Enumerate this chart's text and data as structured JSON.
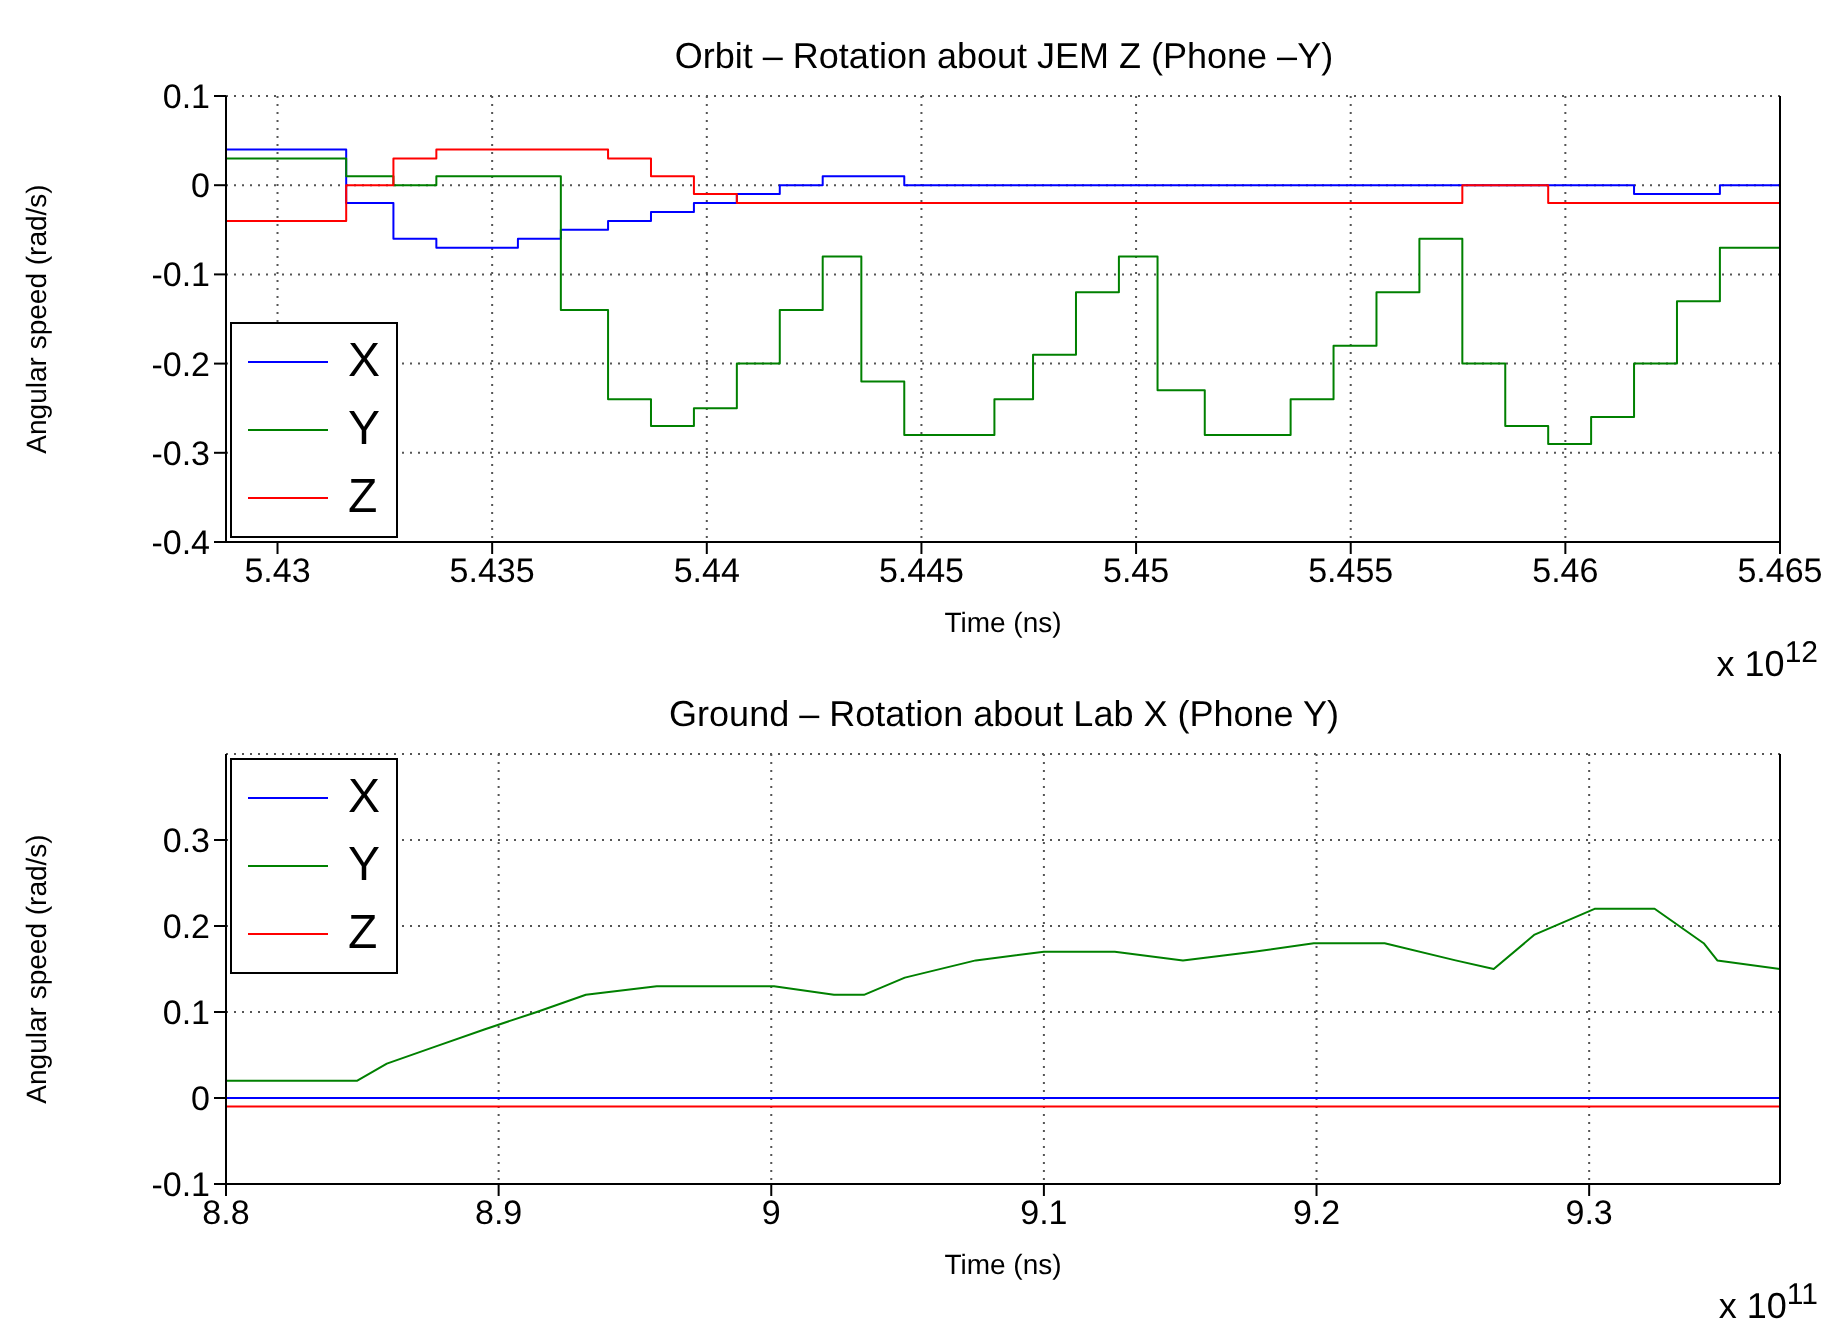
{
  "chart_data": [
    {
      "type": "line",
      "title": "Orbit – Rotation about JEM Z (Phone –Y)",
      "xlabel": "Time (ns)",
      "ylabel": "Angular speed (rad/s)",
      "annotations": [
        "x 10$^{12}$"
      ],
      "xlim": [
        5.4288,
        5.465
      ],
      "xticks": [
        5.43,
        5.435,
        5.44,
        5.445,
        5.45,
        5.455,
        5.46,
        5.465
      ],
      "ylim": [
        -0.4,
        0.1
      ],
      "yticks": [
        -0.4,
        -0.3,
        -0.2,
        -0.1,
        0,
        0.1
      ],
      "grid": true,
      "legend": "bottom left",
      "line_style": "solid",
      "series": [
        {
          "name": "X",
          "color": "#0000ff",
          "x": [
            5.4288,
            5.4316,
            5.4316,
            5.4327,
            5.4327,
            5.4337,
            5.4337,
            5.4356,
            5.4356,
            5.4366,
            5.4366,
            5.4377,
            5.4377,
            5.4387,
            5.4387,
            5.4397,
            5.4397,
            5.4407,
            5.4407,
            5.4417,
            5.4417,
            5.4427,
            5.4427,
            5.4436,
            5.4436,
            5.4446,
            5.4446,
            5.4576,
            5.4576,
            5.4596,
            5.4596,
            5.4616,
            5.4616,
            5.4636,
            5.4636,
            5.465
          ],
          "values": [
            0.04,
            0.04,
            -0.02,
            -0.02,
            -0.06,
            -0.06,
            -0.07,
            -0.07,
            -0.06,
            -0.06,
            -0.05,
            -0.05,
            -0.04,
            -0.04,
            -0.03,
            -0.03,
            -0.02,
            -0.02,
            -0.01,
            -0.01,
            0,
            0,
            0.01,
            0.01,
            0.01,
            0.01,
            0,
            0,
            0,
            0,
            0,
            0,
            -0.01,
            -0.01,
            0,
            0
          ]
        },
        {
          "name": "Y",
          "color": "#008000",
          "x": [
            5.4288,
            5.4316,
            5.4316,
            5.4327,
            5.4327,
            5.4337,
            5.4337,
            5.4356,
            5.4356,
            5.4366,
            5.4366,
            5.4377,
            5.4377,
            5.4387,
            5.4387,
            5.4397,
            5.4397,
            5.4407,
            5.4407,
            5.4417,
            5.4417,
            5.4427,
            5.4427,
            5.4436,
            5.4436,
            5.4446,
            5.4446,
            5.4457,
            5.4457,
            5.4467,
            5.4467,
            5.4476,
            5.4476,
            5.4486,
            5.4486,
            5.4496,
            5.4496,
            5.4505,
            5.4505,
            5.4516,
            5.4516,
            5.4536,
            5.4536,
            5.4546,
            5.4546,
            5.4556,
            5.4556,
            5.4566,
            5.4566,
            5.4576,
            5.4576,
            5.4586,
            5.4586,
            5.4596,
            5.4596,
            5.4606,
            5.4606,
            5.4616,
            5.4616,
            5.4626,
            5.4626,
            5.4636,
            5.4636,
            5.465
          ],
          "values": [
            0.03,
            0.03,
            0.01,
            0.01,
            0,
            0,
            0.01,
            0.01,
            0.01,
            0.01,
            -0.14,
            -0.14,
            -0.24,
            -0.24,
            -0.27,
            -0.27,
            -0.25,
            -0.25,
            -0.2,
            -0.2,
            -0.14,
            -0.14,
            -0.08,
            -0.08,
            -0.22,
            -0.22,
            -0.28,
            -0.28,
            -0.28,
            -0.28,
            -0.24,
            -0.24,
            -0.19,
            -0.19,
            -0.12,
            -0.12,
            -0.08,
            -0.08,
            -0.23,
            -0.23,
            -0.28,
            -0.28,
            -0.24,
            -0.24,
            -0.18,
            -0.18,
            -0.12,
            -0.12,
            -0.06,
            -0.06,
            -0.2,
            -0.2,
            -0.27,
            -0.27,
            -0.29,
            -0.29,
            -0.26,
            -0.26,
            -0.2,
            -0.2,
            -0.13,
            -0.13,
            -0.07,
            -0.07
          ]
        },
        {
          "name": "Z",
          "color": "#ff0000",
          "x": [
            5.4288,
            5.4316,
            5.4316,
            5.4327,
            5.4327,
            5.4337,
            5.4337,
            5.4356,
            5.4356,
            5.4366,
            5.4366,
            5.4377,
            5.4377,
            5.4387,
            5.4387,
            5.4397,
            5.4397,
            5.4407,
            5.4407,
            5.4576,
            5.4576,
            5.4596,
            5.4596,
            5.465
          ],
          "values": [
            -0.04,
            -0.04,
            0,
            0,
            0.03,
            0.03,
            0.04,
            0.04,
            0.04,
            0.04,
            0.04,
            0.04,
            0.03,
            0.03,
            0.01,
            0.01,
            -0.01,
            -0.01,
            -0.02,
            -0.02,
            0,
            0,
            -0.02,
            -0.02
          ]
        }
      ]
    },
    {
      "type": "line",
      "title": "Ground – Rotation about Lab X (Phone Y)",
      "xlabel": "Time (ns)",
      "ylabel": "Angular speed (rad/s)",
      "annotations": [
        "x 10$^{11}$"
      ],
      "xlim": [
        8.8,
        9.37
      ],
      "xticks": [
        8.8,
        8.9,
        9,
        9.1,
        9.2,
        9.3
      ],
      "ylim": [
        -0.1,
        0.4
      ],
      "yticks": [
        -0.1,
        0,
        0.1,
        0.2,
        0.3
      ],
      "grid": true,
      "legend": "top left",
      "line_style": "solid",
      "series": [
        {
          "name": "X",
          "color": "#0000ff",
          "x": [
            8.8,
            9.37
          ],
          "values": [
            0,
            0
          ]
        },
        {
          "name": "Y",
          "color": "#008000",
          "x": [
            8.8,
            8.833,
            8.848,
            8.859,
            8.877,
            8.895,
            8.914,
            8.932,
            8.958,
            8.979,
            9.001,
            9.023,
            9.034,
            9.049,
            9.075,
            9.1,
            9.126,
            9.151,
            9.177,
            9.199,
            9.225,
            9.251,
            9.265,
            9.28,
            9.302,
            9.324,
            9.342,
            9.347,
            9.37
          ],
          "values": [
            0.02,
            0.02,
            0.02,
            0.04,
            0.06,
            0.08,
            0.1,
            0.12,
            0.13,
            0.13,
            0.13,
            0.12,
            0.12,
            0.14,
            0.16,
            0.17,
            0.17,
            0.16,
            0.17,
            0.18,
            0.18,
            0.16,
            0.15,
            0.19,
            0.22,
            0.22,
            0.18,
            0.16,
            0.15
          ]
        },
        {
          "name": "Z",
          "color": "#ff0000",
          "x": [
            8.8,
            9.37
          ],
          "values": [
            -0.01,
            -0.01
          ]
        }
      ]
    }
  ]
}
